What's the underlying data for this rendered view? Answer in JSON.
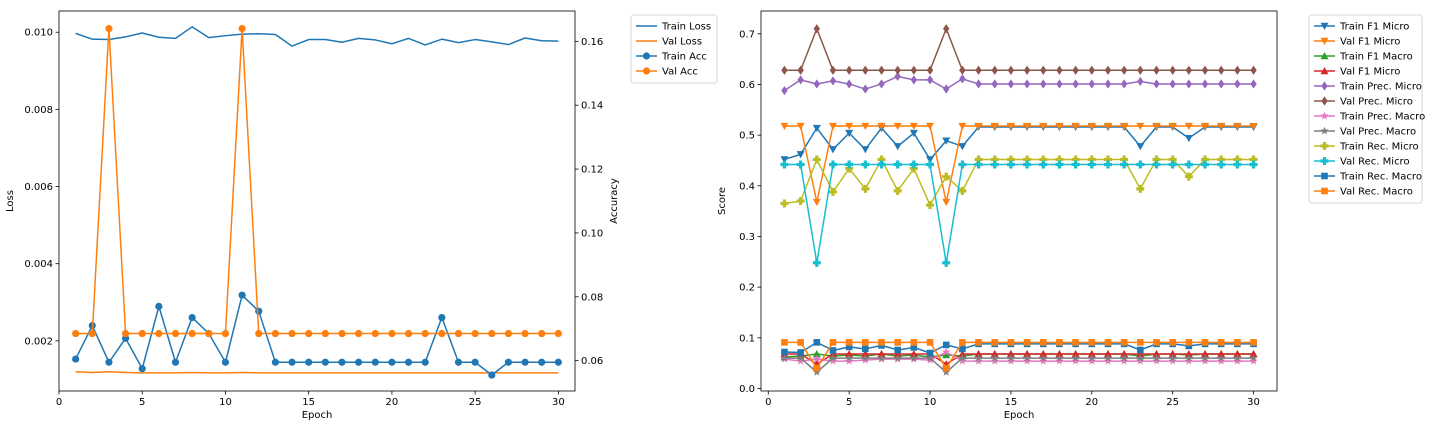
{
  "chart_data": [
    {
      "type": "line",
      "xlabel": "Epoch",
      "ylabel": "Loss",
      "ylabel_right": "Accuracy",
      "xlim": [
        0,
        31
      ],
      "ylim": [
        0.0007,
        0.01055
      ],
      "ylim_right": [
        0.0505,
        0.1695
      ],
      "x_ticks": [
        0,
        5,
        10,
        15,
        20,
        25,
        30
      ],
      "y_ticks": [
        0.002,
        0.004,
        0.006,
        0.008,
        0.01
      ],
      "y_tick_labels": [
        "0.002",
        "0.004",
        "0.006",
        "0.008",
        "0.010"
      ],
      "y_ticks_right": [
        0.06,
        0.08,
        0.1,
        0.12,
        0.14,
        0.16
      ],
      "y_tick_labels_right": [
        "0.06",
        "0.08",
        "0.10",
        "0.12",
        "0.14",
        "0.16"
      ],
      "legend_position": "outside-right",
      "x": [
        1,
        2,
        3,
        4,
        5,
        6,
        7,
        8,
        9,
        10,
        11,
        12,
        13,
        14,
        15,
        16,
        17,
        18,
        19,
        20,
        21,
        22,
        23,
        24,
        25,
        26,
        27,
        28,
        29,
        30
      ],
      "series": [
        {
          "name": "Train Loss",
          "axis": "left",
          "color": "#1f77b4",
          "marker": "none",
          "values": [
            0.00997,
            0.00982,
            0.00981,
            0.00988,
            0.00998,
            0.00987,
            0.00984,
            0.01014,
            0.00986,
            0.00991,
            0.00995,
            0.00996,
            0.00994,
            0.00964,
            0.00981,
            0.00981,
            0.00974,
            0.00984,
            0.0098,
            0.0097,
            0.00984,
            0.00967,
            0.00982,
            0.00973,
            0.00981,
            0.00975,
            0.00968,
            0.00985,
            0.00978,
            0.00977
          ]
        },
        {
          "name": "Val Loss",
          "axis": "left",
          "color": "#ff7f0e",
          "marker": "none",
          "values": [
            0.0012,
            0.00118,
            0.0012,
            0.00118,
            0.00117,
            0.00117,
            0.00117,
            0.00118,
            0.00117,
            0.00117,
            0.00118,
            0.00117,
            0.00117,
            0.00117,
            0.00117,
            0.00117,
            0.00117,
            0.00117,
            0.00117,
            0.00117,
            0.00117,
            0.00117,
            0.00117,
            0.00117,
            0.00117,
            0.00117,
            0.00117,
            0.00117,
            0.00117,
            0.00117
          ]
        },
        {
          "name": "Train Acc",
          "axis": "right",
          "color": "#1f77b4",
          "marker": "circle",
          "values": [
            0.0605,
            0.071,
            0.0595,
            0.067,
            0.0575,
            0.077,
            0.0595,
            0.0735,
            0.0685,
            0.0595,
            0.0805,
            0.0755,
            0.0595,
            0.0595,
            0.0595,
            0.0595,
            0.0595,
            0.0595,
            0.0595,
            0.0595,
            0.0595,
            0.0595,
            0.0735,
            0.0595,
            0.0595,
            0.0555,
            0.0595,
            0.0595,
            0.0595,
            0.0595
          ]
        },
        {
          "name": "Val Acc",
          "axis": "right",
          "color": "#ff7f0e",
          "marker": "circle",
          "values": [
            0.0685,
            0.0685,
            0.164,
            0.0685,
            0.0685,
            0.0685,
            0.0685,
            0.0685,
            0.0685,
            0.0685,
            0.164,
            0.0685,
            0.0685,
            0.0685,
            0.0685,
            0.0685,
            0.0685,
            0.0685,
            0.0685,
            0.0685,
            0.0685,
            0.0685,
            0.0685,
            0.0685,
            0.0685,
            0.0685,
            0.0685,
            0.0685,
            0.0685,
            0.0685
          ]
        }
      ]
    },
    {
      "type": "line",
      "xlabel": "Epoch",
      "ylabel": "Score",
      "xlim": [
        -0.45,
        31.45
      ],
      "ylim": [
        -0.005,
        0.745
      ],
      "x_ticks": [
        0,
        5,
        10,
        15,
        20,
        25,
        30
      ],
      "y_ticks": [
        0.0,
        0.1,
        0.2,
        0.3,
        0.4,
        0.5,
        0.6,
        0.7
      ],
      "y_tick_labels": [
        "0.0",
        "0.1",
        "0.2",
        "0.3",
        "0.4",
        "0.5",
        "0.6",
        "0.7"
      ],
      "legend_position": "outside-right",
      "x": [
        1,
        2,
        3,
        4,
        5,
        6,
        7,
        8,
        9,
        10,
        11,
        12,
        13,
        14,
        15,
        16,
        17,
        18,
        19,
        20,
        21,
        22,
        23,
        24,
        25,
        26,
        27,
        28,
        29,
        30
      ],
      "series": [
        {
          "name": "Train F1 Micro",
          "color": "#1f77b4",
          "marker": "triangle-down",
          "values": [
            0.452,
            0.462,
            0.514,
            0.472,
            0.504,
            0.472,
            0.514,
            0.478,
            0.504,
            0.452,
            0.489,
            0.478,
            0.516,
            0.516,
            0.516,
            0.516,
            0.516,
            0.516,
            0.516,
            0.516,
            0.516,
            0.516,
            0.478,
            0.516,
            0.516,
            0.494,
            0.516,
            0.516,
            0.516,
            0.516
          ]
        },
        {
          "name": "Val F1 Micro",
          "color": "#ff7f0e",
          "marker": "triangle-down",
          "values": [
            0.518,
            0.518,
            0.368,
            0.518,
            0.518,
            0.518,
            0.518,
            0.518,
            0.518,
            0.518,
            0.368,
            0.518,
            0.518,
            0.518,
            0.518,
            0.518,
            0.518,
            0.518,
            0.518,
            0.518,
            0.518,
            0.518,
            0.518,
            0.518,
            0.518,
            0.518,
            0.518,
            0.518,
            0.518,
            0.518
          ]
        },
        {
          "name": "Train F1 Macro",
          "color": "#2ca02c",
          "marker": "triangle-up",
          "values": [
            0.062,
            0.064,
            0.068,
            0.064,
            0.066,
            0.064,
            0.068,
            0.064,
            0.066,
            0.062,
            0.066,
            0.064,
            0.068,
            0.068,
            0.068,
            0.068,
            0.068,
            0.068,
            0.068,
            0.068,
            0.068,
            0.068,
            0.064,
            0.068,
            0.068,
            0.066,
            0.068,
            0.068,
            0.068,
            0.068
          ]
        },
        {
          "name": "Val F1 Micro",
          "color": "#d62728",
          "marker": "triangle-up",
          "values": [
            0.068,
            0.068,
            0.048,
            0.068,
            0.068,
            0.068,
            0.068,
            0.068,
            0.068,
            0.068,
            0.048,
            0.068,
            0.068,
            0.068,
            0.068,
            0.068,
            0.068,
            0.068,
            0.068,
            0.068,
            0.068,
            0.068,
            0.068,
            0.068,
            0.068,
            0.068,
            0.068,
            0.068,
            0.068,
            0.068
          ]
        },
        {
          "name": "Train Prec. Micro",
          "color": "#9467bd",
          "marker": "diamond",
          "values": [
            0.588,
            0.609,
            0.601,
            0.607,
            0.601,
            0.591,
            0.601,
            0.616,
            0.609,
            0.609,
            0.591,
            0.611,
            0.601,
            0.601,
            0.601,
            0.601,
            0.601,
            0.601,
            0.601,
            0.601,
            0.601,
            0.601,
            0.606,
            0.601,
            0.601,
            0.601,
            0.601,
            0.601,
            0.601,
            0.601
          ]
        },
        {
          "name": "Val Prec. Micro",
          "color": "#8c564b",
          "marker": "diamond",
          "values": [
            0.628,
            0.628,
            0.71,
            0.628,
            0.628,
            0.628,
            0.628,
            0.628,
            0.628,
            0.628,
            0.71,
            0.628,
            0.628,
            0.628,
            0.628,
            0.628,
            0.628,
            0.628,
            0.628,
            0.628,
            0.628,
            0.628,
            0.628,
            0.628,
            0.628,
            0.628,
            0.628,
            0.628,
            0.628,
            0.628
          ]
        },
        {
          "name": "Train Prec. Macro",
          "color": "#e377c2",
          "marker": "star",
          "values": [
            0.058,
            0.054,
            0.058,
            0.054,
            0.054,
            0.056,
            0.058,
            0.058,
            0.058,
            0.056,
            0.072,
            0.054,
            0.054,
            0.054,
            0.054,
            0.054,
            0.054,
            0.054,
            0.054,
            0.054,
            0.054,
            0.054,
            0.054,
            0.054,
            0.054,
            0.054,
            0.054,
            0.054,
            0.054,
            0.054
          ]
        },
        {
          "name": "Val Prec. Macro",
          "color": "#7f7f7f",
          "marker": "star",
          "values": [
            0.06,
            0.06,
            0.032,
            0.06,
            0.06,
            0.06,
            0.06,
            0.06,
            0.06,
            0.06,
            0.032,
            0.06,
            0.06,
            0.06,
            0.06,
            0.06,
            0.06,
            0.06,
            0.06,
            0.06,
            0.06,
            0.06,
            0.06,
            0.06,
            0.06,
            0.06,
            0.06,
            0.06,
            0.06,
            0.06
          ]
        },
        {
          "name": "Train Rec. Micro",
          "color": "#bcbd22",
          "marker": "plus",
          "values": [
            0.365,
            0.37,
            0.452,
            0.388,
            0.434,
            0.394,
            0.452,
            0.39,
            0.434,
            0.362,
            0.418,
            0.39,
            0.452,
            0.452,
            0.452,
            0.452,
            0.452,
            0.452,
            0.452,
            0.452,
            0.452,
            0.452,
            0.394,
            0.452,
            0.452,
            0.418,
            0.452,
            0.452,
            0.452,
            0.452
          ]
        },
        {
          "name": "Val Rec. Micro",
          "color": "#17becf",
          "marker": "plus",
          "values": [
            0.442,
            0.442,
            0.248,
            0.442,
            0.442,
            0.442,
            0.442,
            0.442,
            0.442,
            0.442,
            0.248,
            0.442,
            0.442,
            0.442,
            0.442,
            0.442,
            0.442,
            0.442,
            0.442,
            0.442,
            0.442,
            0.442,
            0.442,
            0.442,
            0.442,
            0.442,
            0.442,
            0.442,
            0.442,
            0.442
          ]
        },
        {
          "name": "Train Rec. Macro",
          "color": "#1f77b4",
          "marker": "square",
          "values": [
            0.072,
            0.071,
            0.091,
            0.075,
            0.082,
            0.078,
            0.085,
            0.076,
            0.081,
            0.07,
            0.086,
            0.078,
            0.088,
            0.088,
            0.088,
            0.088,
            0.088,
            0.088,
            0.088,
            0.088,
            0.088,
            0.088,
            0.076,
            0.088,
            0.088,
            0.084,
            0.088,
            0.088,
            0.088,
            0.088
          ]
        },
        {
          "name": "Val Rec. Macro",
          "color": "#ff7f0e",
          "marker": "square",
          "values": [
            0.091,
            0.091,
            0.04,
            0.091,
            0.091,
            0.091,
            0.091,
            0.091,
            0.091,
            0.091,
            0.04,
            0.091,
            0.091,
            0.091,
            0.091,
            0.091,
            0.091,
            0.091,
            0.091,
            0.091,
            0.091,
            0.091,
            0.091,
            0.091,
            0.091,
            0.091,
            0.091,
            0.091,
            0.091,
            0.091
          ]
        }
      ]
    }
  ]
}
